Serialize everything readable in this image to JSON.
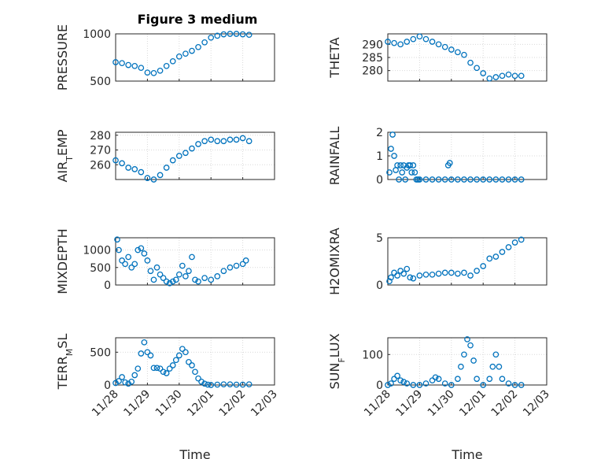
{
  "figure": {
    "title": "Figure 3 medium",
    "xlabel": "Time",
    "marker_color": "#0072BD"
  },
  "chart_data": [
    {
      "type": "scatter",
      "name": "pressure",
      "ylabel": "PRESSURE",
      "ylim": [
        500,
        1000
      ],
      "yticks": [
        500,
        1000
      ],
      "xlim": [
        0,
        5
      ],
      "xticks": [
        0,
        1,
        2,
        3,
        4,
        5
      ],
      "xticklabels": [
        "11/28",
        "11/29",
        "11/30",
        "12/01",
        "12/02",
        "12/03"
      ],
      "show_xticklabels": false,
      "grid": true,
      "x": [
        0,
        0.2,
        0.4,
        0.6,
        0.8,
        1.0,
        1.2,
        1.4,
        1.6,
        1.8,
        2.0,
        2.2,
        2.4,
        2.6,
        2.8,
        3.0,
        3.2,
        3.4,
        3.6,
        3.8,
        4.0,
        4.2
      ],
      "y": [
        700,
        690,
        670,
        660,
        640,
        590,
        585,
        610,
        660,
        710,
        760,
        790,
        820,
        860,
        910,
        960,
        980,
        995,
        1000,
        1000,
        995,
        990
      ]
    },
    {
      "type": "scatter",
      "name": "theta",
      "ylabel": "THETA",
      "ylim": [
        276,
        294
      ],
      "yticks": [
        280,
        285,
        290
      ],
      "xlim": [
        0,
        5
      ],
      "xticks": [
        0,
        1,
        2,
        3,
        4,
        5
      ],
      "xticklabels": [
        "11/28",
        "11/29",
        "11/30",
        "12/01",
        "12/02",
        "12/03"
      ],
      "show_xticklabels": false,
      "grid": true,
      "x": [
        0,
        0.2,
        0.4,
        0.6,
        0.8,
        1.0,
        1.2,
        1.4,
        1.6,
        1.8,
        2.0,
        2.2,
        2.4,
        2.6,
        2.8,
        3.0,
        3.2,
        3.4,
        3.6,
        3.8,
        4.0,
        4.2
      ],
      "y": [
        291,
        290.5,
        290,
        291,
        292,
        293,
        292,
        291,
        290,
        289,
        288,
        287,
        286,
        283,
        281,
        279,
        277,
        277.5,
        278,
        278.5,
        278,
        278
      ]
    },
    {
      "type": "scatter",
      "name": "airtemp",
      "ylabel": "AIR_TEMP",
      "ylim": [
        250,
        282
      ],
      "yticks": [
        260,
        270,
        280
      ],
      "xlim": [
        0,
        5
      ],
      "xticks": [
        0,
        1,
        2,
        3,
        4,
        5
      ],
      "xticklabels": [
        "11/28",
        "11/29",
        "11/30",
        "12/01",
        "12/02",
        "12/03"
      ],
      "show_xticklabels": false,
      "grid": true,
      "x": [
        0,
        0.2,
        0.4,
        0.6,
        0.8,
        1.0,
        1.2,
        1.4,
        1.6,
        1.8,
        2.0,
        2.2,
        2.4,
        2.6,
        2.8,
        3.0,
        3.2,
        3.4,
        3.6,
        3.8,
        4.0,
        4.2
      ],
      "y": [
        263,
        261,
        258,
        257,
        255,
        251,
        250,
        253,
        258,
        263,
        266,
        268,
        271,
        274,
        276,
        277,
        276,
        276,
        277,
        277,
        278,
        276
      ]
    },
    {
      "type": "scatter",
      "name": "rainfall",
      "ylabel": "RAINFALL",
      "ylim": [
        0,
        2
      ],
      "yticks": [
        0,
        1,
        2
      ],
      "xlim": [
        0,
        5
      ],
      "xticks": [
        0,
        1,
        2,
        3,
        4,
        5
      ],
      "xticklabels": [
        "11/28",
        "11/29",
        "11/30",
        "12/01",
        "12/02",
        "12/03"
      ],
      "show_xticklabels": false,
      "grid": true,
      "x": [
        0.05,
        0.1,
        0.15,
        0.2,
        0.25,
        0.3,
        0.35,
        0.4,
        0.45,
        0.5,
        0.55,
        0.6,
        0.65,
        0.7,
        0.75,
        0.8,
        0.85,
        0.9,
        0.95,
        1.0,
        1.2,
        1.4,
        1.6,
        1.8,
        1.9,
        1.95,
        2.0,
        2.2,
        2.4,
        2.6,
        2.8,
        3.0,
        3.2,
        3.4,
        3.6,
        3.8,
        4.0,
        4.2
      ],
      "y": [
        0.3,
        1.3,
        1.9,
        1.0,
        0.4,
        0.6,
        0,
        0.6,
        0.3,
        0.6,
        0,
        0.5,
        0.6,
        0.6,
        0.3,
        0.6,
        0.3,
        0,
        0,
        0,
        0,
        0,
        0,
        0,
        0.6,
        0.7,
        0,
        0,
        0,
        0,
        0,
        0,
        0,
        0,
        0,
        0,
        0,
        0
      ]
    },
    {
      "type": "scatter",
      "name": "mixdepth",
      "ylabel": "MIXDEPTH",
      "ylim": [
        0,
        1350
      ],
      "yticks": [
        0,
        500,
        1000
      ],
      "xlim": [
        0,
        5
      ],
      "xticks": [
        0,
        1,
        2,
        3,
        4,
        5
      ],
      "xticklabels": [
        "11/28",
        "11/29",
        "11/30",
        "12/01",
        "12/02",
        "12/03"
      ],
      "show_xticklabels": false,
      "grid": true,
      "x": [
        0.05,
        0.1,
        0.2,
        0.3,
        0.4,
        0.5,
        0.6,
        0.7,
        0.8,
        0.9,
        1.0,
        1.1,
        1.2,
        1.3,
        1.4,
        1.5,
        1.6,
        1.7,
        1.8,
        1.9,
        2.0,
        2.1,
        2.2,
        2.3,
        2.4,
        2.5,
        2.6,
        2.8,
        3.0,
        3.2,
        3.4,
        3.6,
        3.8,
        4.0,
        4.1
      ],
      "y": [
        1300,
        1000,
        700,
        600,
        800,
        500,
        600,
        1000,
        1050,
        900,
        700,
        400,
        150,
        500,
        300,
        200,
        100,
        50,
        100,
        150,
        300,
        550,
        250,
        400,
        800,
        150,
        100,
        200,
        150,
        250,
        400,
        500,
        550,
        600,
        700
      ]
    },
    {
      "type": "scatter",
      "name": "h2omixra",
      "ylabel": "H2OMIXRA",
      "ylim": [
        0,
        5
      ],
      "yticks": [
        0,
        5
      ],
      "xlim": [
        0,
        5
      ],
      "xticks": [
        0,
        1,
        2,
        3,
        4,
        5
      ],
      "xticklabels": [
        "11/28",
        "11/29",
        "11/30",
        "12/01",
        "12/02",
        "12/03"
      ],
      "show_xticklabels": false,
      "grid": true,
      "x": [
        0.05,
        0.1,
        0.2,
        0.3,
        0.4,
        0.5,
        0.6,
        0.7,
        0.8,
        1.0,
        1.2,
        1.4,
        1.6,
        1.8,
        2.0,
        2.2,
        2.4,
        2.6,
        2.8,
        3.0,
        3.2,
        3.4,
        3.6,
        3.8,
        4.0,
        4.2
      ],
      "y": [
        0.4,
        0.8,
        1.3,
        1.0,
        1.5,
        1.2,
        1.7,
        0.8,
        0.7,
        1.0,
        1.1,
        1.1,
        1.2,
        1.3,
        1.3,
        1.2,
        1.3,
        1.0,
        1.5,
        2.0,
        2.8,
        3.0,
        3.5,
        4.0,
        4.5,
        4.8
      ]
    },
    {
      "type": "scatter",
      "name": "terrmsl",
      "ylabel": "TERR_MSL",
      "ylim": [
        0,
        720
      ],
      "yticks": [
        0,
        500
      ],
      "xlim": [
        0,
        5
      ],
      "xticks": [
        0,
        1,
        2,
        3,
        4,
        5
      ],
      "xticklabels": [
        "11/28",
        "11/29",
        "11/30",
        "12/01",
        "12/02",
        "12/03"
      ],
      "show_xticklabels": true,
      "show_xlabel": true,
      "grid": true,
      "x": [
        0,
        0.1,
        0.2,
        0.3,
        0.4,
        0.5,
        0.6,
        0.7,
        0.8,
        0.9,
        1.0,
        1.1,
        1.2,
        1.3,
        1.4,
        1.5,
        1.6,
        1.7,
        1.8,
        1.9,
        2.0,
        2.1,
        2.2,
        2.3,
        2.4,
        2.5,
        2.6,
        2.7,
        2.8,
        2.9,
        3.0,
        3.2,
        3.4,
        3.6,
        3.8,
        4.0,
        4.2
      ],
      "y": [
        30,
        60,
        120,
        40,
        20,
        50,
        150,
        250,
        480,
        650,
        500,
        450,
        260,
        260,
        250,
        200,
        180,
        250,
        300,
        380,
        450,
        550,
        500,
        350,
        300,
        200,
        100,
        50,
        20,
        5,
        0,
        5,
        10,
        10,
        5,
        5,
        10
      ]
    },
    {
      "type": "scatter",
      "name": "sunflux",
      "ylabel": "SUN_FLUX",
      "ylim": [
        0,
        155
      ],
      "yticks": [
        0,
        100
      ],
      "xlim": [
        0,
        5
      ],
      "xticks": [
        0,
        1,
        2,
        3,
        4,
        5
      ],
      "xticklabels": [
        "11/28",
        "11/29",
        "11/30",
        "12/01",
        "12/02",
        "12/03"
      ],
      "show_xticklabels": true,
      "show_xlabel": true,
      "grid": true,
      "x": [
        0,
        0.1,
        0.2,
        0.3,
        0.4,
        0.5,
        0.6,
        0.8,
        1.0,
        1.2,
        1.4,
        1.5,
        1.6,
        1.8,
        2.0,
        2.2,
        2.3,
        2.4,
        2.5,
        2.6,
        2.7,
        2.8,
        3.0,
        3.2,
        3.3,
        3.4,
        3.5,
        3.6,
        3.8,
        4.0,
        4.2
      ],
      "y": [
        0,
        5,
        20,
        30,
        15,
        10,
        5,
        0,
        0,
        5,
        15,
        25,
        20,
        5,
        0,
        20,
        60,
        100,
        150,
        130,
        80,
        20,
        0,
        20,
        60,
        100,
        60,
        20,
        5,
        0,
        0
      ]
    }
  ]
}
